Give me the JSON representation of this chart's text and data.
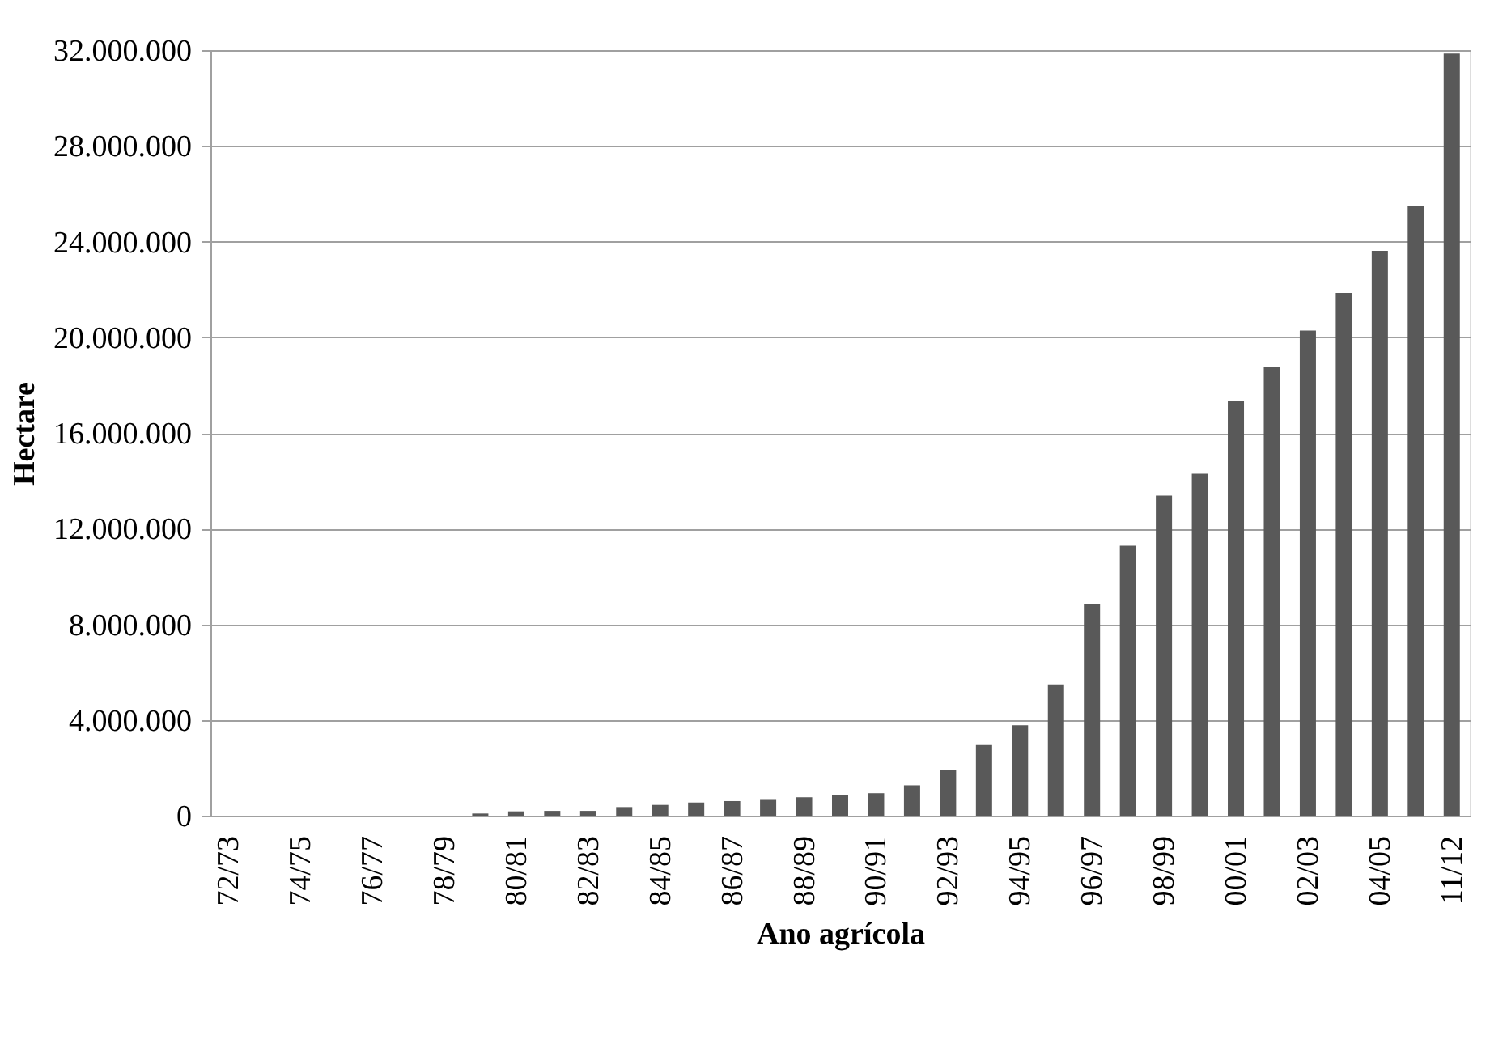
{
  "chart_data": {
    "type": "bar",
    "xlabel": "Ano agrícola",
    "ylabel": "Hectare",
    "categories": [
      "72/73",
      null,
      "74/75",
      null,
      "76/77",
      null,
      "78/79",
      null,
      "80/81",
      null,
      "82/83",
      null,
      "84/85",
      null,
      "86/87",
      null,
      "88/89",
      null,
      "90/91",
      null,
      "92/93",
      null,
      "94/95",
      null,
      "96/97",
      null,
      "98/99",
      null,
      "00/01",
      null,
      "02/03",
      null,
      "04/05",
      null,
      "11/12"
    ],
    "values": [
      0,
      0,
      0,
      0,
      0,
      0,
      0,
      90000,
      180000,
      200000,
      200000,
      360000,
      450000,
      550000,
      610000,
      660000,
      770000,
      860000,
      940000,
      1270000,
      1930000,
      2950000,
      3780000,
      5490000,
      8830000,
      11280000,
      13380000,
      14290000,
      17320000,
      18760000,
      20280000,
      21850000,
      23610000,
      25490000,
      31860000
    ],
    "color": "#595959",
    "ylim": [
      0,
      32000000
    ],
    "yticks": [
      {
        "value": 0,
        "label": "0"
      },
      {
        "value": 4000000,
        "label": "4.000.000"
      },
      {
        "value": 8000000,
        "label": "8.000.000"
      },
      {
        "value": 12000000,
        "label": "12.000.000"
      },
      {
        "value": 16000000,
        "label": "16.000.000"
      },
      {
        "value": 20000000,
        "label": "20.000.000"
      },
      {
        "value": 24000000,
        "label": "24.000.000"
      },
      {
        "value": 28000000,
        "label": "28.000.000"
      },
      {
        "value": 32000000,
        "label": "32.000.000"
      }
    ],
    "grid": "y"
  }
}
